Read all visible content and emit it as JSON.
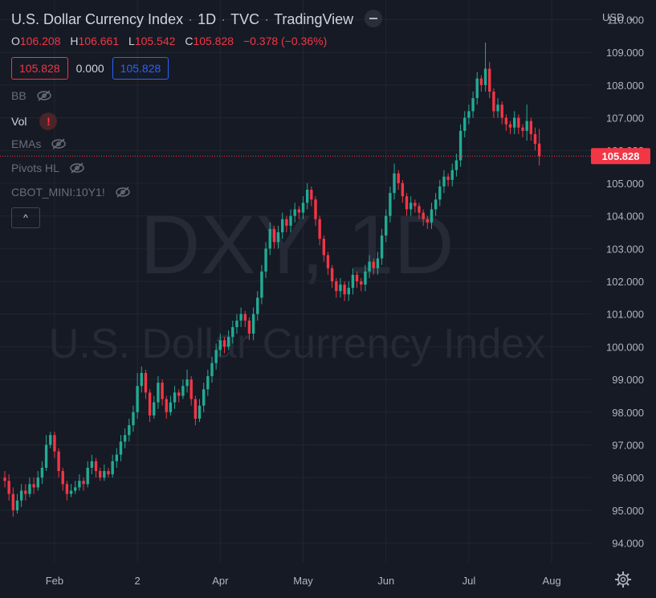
{
  "header": {
    "symbol_name": "U.S. Dollar Currency Index",
    "interval": "1D",
    "exchange": "TVC",
    "source": "TradingView"
  },
  "ohlc": {
    "o_label": "O",
    "o": "106.208",
    "h_label": "H",
    "h": "106.661",
    "l_label": "L",
    "l": "105.542",
    "c_label": "C",
    "c": "105.828",
    "change": "−0.378 (−0.36%)"
  },
  "value_boxes": {
    "bid": "105.828",
    "spread": "0.000",
    "ask": "105.828"
  },
  "indicators": {
    "bb": "BB",
    "vol": "Vol",
    "vol_warning": "!",
    "emas": "EMAs",
    "pivots": "Pivots HL",
    "cbot": "CBOT_MINI:10Y1!"
  },
  "collapse_label": "^",
  "currency_menu": "USD",
  "watermark": {
    "ticker": "DXY, 1D",
    "name": "U.S. Dollar Currency Index"
  },
  "colors": {
    "up": "#22ab94",
    "down": "#f23645",
    "bg": "#161a25",
    "grid": "#232632"
  },
  "chart_data": {
    "type": "candlestick",
    "title": "U.S. Dollar Currency Index · 1D · TVC",
    "ylim": [
      93.4,
      110.6
    ],
    "y_ticks": [
      "110.000",
      "109.000",
      "108.000",
      "107.000",
      "106.000",
      "105.000",
      "104.000",
      "103.000",
      "102.000",
      "101.000",
      "100.000",
      "99.000",
      "98.000",
      "97.000",
      "96.000",
      "95.000",
      "94.000"
    ],
    "x_ticks": [
      {
        "label": "Feb",
        "index": 12
      },
      {
        "label": "2",
        "index": 32
      },
      {
        "label": "Apr",
        "index": 52
      },
      {
        "label": "May",
        "index": 72
      },
      {
        "label": "Jun",
        "index": 92
      },
      {
        "label": "Jul",
        "index": 112
      },
      {
        "label": "Aug",
        "index": 132
      }
    ],
    "last_price": "105.828",
    "last_price_value": 105.828,
    "close": [
      95.9,
      95.5,
      95.0,
      95.3,
      95.6,
      95.5,
      95.8,
      95.7,
      96.0,
      96.3,
      97.0,
      97.3,
      96.8,
      96.2,
      95.8,
      95.5,
      95.6,
      95.7,
      95.9,
      95.8,
      96.3,
      96.5,
      96.2,
      96.0,
      96.2,
      96.1,
      96.5,
      96.7,
      97.1,
      97.3,
      97.6,
      98.0,
      98.8,
      99.2,
      98.6,
      97.9,
      98.3,
      98.9,
      98.4,
      98.0,
      98.3,
      98.6,
      98.5,
      98.8,
      99.0,
      98.4,
      97.8,
      98.2,
      98.7,
      99.1,
      99.5,
      99.9,
      100.2,
      100.0,
      100.3,
      100.6,
      100.8,
      101.0,
      100.8,
      100.4,
      101.0,
      101.5,
      102.3,
      103.0,
      103.6,
      103.2,
      103.5,
      103.9,
      103.7,
      104.0,
      104.2,
      104.1,
      104.4,
      104.8,
      104.5,
      103.9,
      103.3,
      102.8,
      102.4,
      102.0,
      101.7,
      101.9,
      101.6,
      101.8,
      102.2,
      102.0,
      101.9,
      102.3,
      102.6,
      102.4,
      102.7,
      103.4,
      104.0,
      104.7,
      105.3,
      105.0,
      104.6,
      104.2,
      104.4,
      104.3,
      104.1,
      103.9,
      103.8,
      104.2,
      104.5,
      104.9,
      105.2,
      105.1,
      105.4,
      105.7,
      106.6,
      107.0,
      107.2,
      107.6,
      108.2,
      108.0,
      108.5,
      107.8,
      107.2,
      107.4,
      107.0,
      106.8,
      106.7,
      107.0,
      106.7,
      106.6,
      106.9,
      106.5,
      106.2,
      105.83
    ],
    "open": [
      96.0,
      95.9,
      95.5,
      95.0,
      95.3,
      95.6,
      95.5,
      95.8,
      95.7,
      96.0,
      96.3,
      97.0,
      97.3,
      96.8,
      96.2,
      95.8,
      95.5,
      95.6,
      95.7,
      95.9,
      95.8,
      96.3,
      96.5,
      96.2,
      96.0,
      96.2,
      96.1,
      96.5,
      96.7,
      97.1,
      97.3,
      97.6,
      98.0,
      98.8,
      99.2,
      98.6,
      97.9,
      98.3,
      98.9,
      98.4,
      98.0,
      98.3,
      98.6,
      98.5,
      98.8,
      99.0,
      98.4,
      97.8,
      98.2,
      98.7,
      99.1,
      99.5,
      99.9,
      100.2,
      100.0,
      100.3,
      100.6,
      100.8,
      101.0,
      100.8,
      100.4,
      101.0,
      101.5,
      102.3,
      103.0,
      103.6,
      103.2,
      103.5,
      103.9,
      103.7,
      104.0,
      104.2,
      104.1,
      104.4,
      104.8,
      104.5,
      103.9,
      103.3,
      102.8,
      102.4,
      102.0,
      101.7,
      101.9,
      101.6,
      101.8,
      102.2,
      102.0,
      101.9,
      102.3,
      102.6,
      102.4,
      102.7,
      103.4,
      104.0,
      104.7,
      105.3,
      105.0,
      104.6,
      104.2,
      104.4,
      104.3,
      104.1,
      103.9,
      103.8,
      104.2,
      104.5,
      104.9,
      105.2,
      105.1,
      105.4,
      105.7,
      106.6,
      107.0,
      107.2,
      107.6,
      108.2,
      108.0,
      108.5,
      107.8,
      107.2,
      107.4,
      107.0,
      106.8,
      106.7,
      107.0,
      106.7,
      106.6,
      106.9,
      106.5,
      106.21
    ],
    "high": [
      96.2,
      96.1,
      95.7,
      95.5,
      95.8,
      95.8,
      96.0,
      96.0,
      96.2,
      96.5,
      97.3,
      97.4,
      97.4,
      96.9,
      96.3,
      95.9,
      95.8,
      95.9,
      96.1,
      96.0,
      96.5,
      96.7,
      96.6,
      96.3,
      96.4,
      96.3,
      96.7,
      96.9,
      97.3,
      97.5,
      97.8,
      98.2,
      99.2,
      99.4,
      99.3,
      98.7,
      98.5,
      99.1,
      99.0,
      98.5,
      98.5,
      98.8,
      98.7,
      99.0,
      99.3,
      99.1,
      98.5,
      98.4,
      98.9,
      99.3,
      99.7,
      100.1,
      100.4,
      100.3,
      100.5,
      100.8,
      101.0,
      101.2,
      101.1,
      100.9,
      101.2,
      101.7,
      102.5,
      103.2,
      103.8,
      103.7,
      103.7,
      104.1,
      104.0,
      104.2,
      104.4,
      104.3,
      104.6,
      105.0,
      104.9,
      104.6,
      104.0,
      103.4,
      102.9,
      102.5,
      102.1,
      102.1,
      102.0,
      102.0,
      102.4,
      102.3,
      102.1,
      102.5,
      102.8,
      102.7,
      102.9,
      103.6,
      104.2,
      104.9,
      105.6,
      105.4,
      105.1,
      104.7,
      104.6,
      104.5,
      104.4,
      104.2,
      104.0,
      104.4,
      104.7,
      105.1,
      105.4,
      105.3,
      105.6,
      105.9,
      106.8,
      107.2,
      107.4,
      107.8,
      108.4,
      108.3,
      109.3,
      108.7,
      107.9,
      107.6,
      107.5,
      107.1,
      106.9,
      107.2,
      107.1,
      106.8,
      107.4,
      107.0,
      106.7,
      106.66
    ],
    "low": [
      95.7,
      95.3,
      94.8,
      94.9,
      95.1,
      95.3,
      95.4,
      95.5,
      95.6,
      95.8,
      96.2,
      96.9,
      96.6,
      96.0,
      95.6,
      95.3,
      95.4,
      95.5,
      95.6,
      95.6,
      95.7,
      96.1,
      96.0,
      95.9,
      95.9,
      96.0,
      96.0,
      96.3,
      96.5,
      96.9,
      97.1,
      97.4,
      97.8,
      98.6,
      98.4,
      97.7,
      97.8,
      98.1,
      98.2,
      97.8,
      97.9,
      98.1,
      98.3,
      98.4,
      98.6,
      98.2,
      97.6,
      97.7,
      98.0,
      98.5,
      98.9,
      99.3,
      99.7,
      99.8,
      99.9,
      100.1,
      100.4,
      100.6,
      100.6,
      100.2,
      100.2,
      100.8,
      101.3,
      102.1,
      102.8,
      103.0,
      103.0,
      103.3,
      103.5,
      103.5,
      103.8,
      103.9,
      103.9,
      104.2,
      104.3,
      103.7,
      103.1,
      102.6,
      102.2,
      101.8,
      101.5,
      101.5,
      101.4,
      101.4,
      101.6,
      101.8,
      101.7,
      101.7,
      102.1,
      102.2,
      102.2,
      102.5,
      103.2,
      103.8,
      104.5,
      104.8,
      104.4,
      104.0,
      104.0,
      104.1,
      103.9,
      103.7,
      103.6,
      103.6,
      104.0,
      104.3,
      104.7,
      104.9,
      104.9,
      105.2,
      105.5,
      106.4,
      106.8,
      107.0,
      107.4,
      107.8,
      107.8,
      107.6,
      107.0,
      107.0,
      106.8,
      106.6,
      106.5,
      106.5,
      106.5,
      106.4,
      106.3,
      106.3,
      106.0,
      105.54
    ]
  }
}
